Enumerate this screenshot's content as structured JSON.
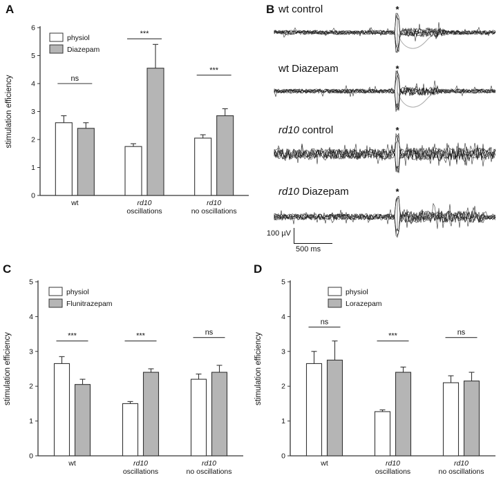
{
  "panels": {
    "a": {
      "label": "A"
    },
    "b": {
      "label": "B"
    },
    "c": {
      "label": "C"
    },
    "d": {
      "label": "D"
    }
  },
  "colors": {
    "physiol_fill": "#ffffff",
    "drug_fill": "#b5b5b5",
    "stroke": "#333333",
    "text": "#111111"
  },
  "chart_data": [
    {
      "panel": "A",
      "type": "bar",
      "ylabel": "stimulation efficiency",
      "xlabel": "",
      "ylim": [
        0,
        6
      ],
      "yticks": [
        0,
        1,
        2,
        3,
        4,
        5,
        6
      ],
      "categories": [
        [
          "wt"
        ],
        [
          "rd10",
          "oscillations"
        ],
        [
          "rd10",
          "no oscillations"
        ]
      ],
      "legend": [
        "physiol",
        "Diazepam"
      ],
      "series": [
        {
          "name": "physiol",
          "values": [
            2.6,
            1.75,
            2.05
          ],
          "errors": [
            0.25,
            0.1,
            0.12
          ]
        },
        {
          "name": "Diazepam",
          "values": [
            2.4,
            4.55,
            2.85
          ],
          "errors": [
            0.2,
            0.85,
            0.25
          ]
        }
      ],
      "significance": [
        {
          "group": 0,
          "text": "ns",
          "y": 4.0
        },
        {
          "group": 1,
          "text": "***",
          "y": 5.6
        },
        {
          "group": 2,
          "text": "***",
          "y": 4.3
        }
      ]
    },
    {
      "panel": "B",
      "type": "traces",
      "traces": [
        {
          "label_parts": [
            "wt control"
          ]
        },
        {
          "label_parts": [
            "wt Diazepam"
          ]
        },
        {
          "label_parts": [
            "rd10",
            " control"
          ]
        },
        {
          "label_parts": [
            "rd10",
            " Diazepam"
          ]
        }
      ],
      "stim_marker": "*",
      "scale": {
        "v": "100 µV",
        "h": "500 ms"
      }
    },
    {
      "panel": "C",
      "type": "bar",
      "ylabel": "stimulation efficiency",
      "xlabel": "",
      "ylim": [
        0,
        5
      ],
      "yticks": [
        0,
        1,
        2,
        3,
        4,
        5
      ],
      "categories": [
        [
          "wt"
        ],
        [
          "rd10",
          "oscillations"
        ],
        [
          "rd10",
          "no oscillations"
        ]
      ],
      "legend": [
        "physiol",
        "Flunitrazepam"
      ],
      "series": [
        {
          "name": "physiol",
          "values": [
            2.65,
            1.5,
            2.2
          ],
          "errors": [
            0.2,
            0.06,
            0.15
          ]
        },
        {
          "name": "Flunitrazepam",
          "values": [
            2.05,
            2.4,
            2.4
          ],
          "errors": [
            0.15,
            0.1,
            0.2
          ]
        }
      ],
      "significance": [
        {
          "group": 0,
          "text": "***",
          "y": 3.3
        },
        {
          "group": 1,
          "text": "***",
          "y": 3.3
        },
        {
          "group": 2,
          "text": "ns",
          "y": 3.4
        }
      ]
    },
    {
      "panel": "D",
      "type": "bar",
      "ylabel": "stimulation efficiency",
      "xlabel": "",
      "ylim": [
        0,
        5
      ],
      "yticks": [
        0,
        1,
        2,
        3,
        4,
        5
      ],
      "categories": [
        [
          "wt"
        ],
        [
          "rd10",
          "oscillations"
        ],
        [
          "rd10",
          "no oscillations"
        ]
      ],
      "legend": [
        "physiol",
        "Lorazepam"
      ],
      "series": [
        {
          "name": "physiol",
          "values": [
            2.65,
            1.27,
            2.1
          ],
          "errors": [
            0.35,
            0.05,
            0.2
          ]
        },
        {
          "name": "Lorazepam",
          "values": [
            2.75,
            2.4,
            2.15
          ],
          "errors": [
            0.55,
            0.15,
            0.25
          ]
        }
      ],
      "significance": [
        {
          "group": 0,
          "text": "ns",
          "y": 3.7
        },
        {
          "group": 1,
          "text": "***",
          "y": 3.3
        },
        {
          "group": 2,
          "text": "ns",
          "y": 3.4
        }
      ]
    }
  ]
}
